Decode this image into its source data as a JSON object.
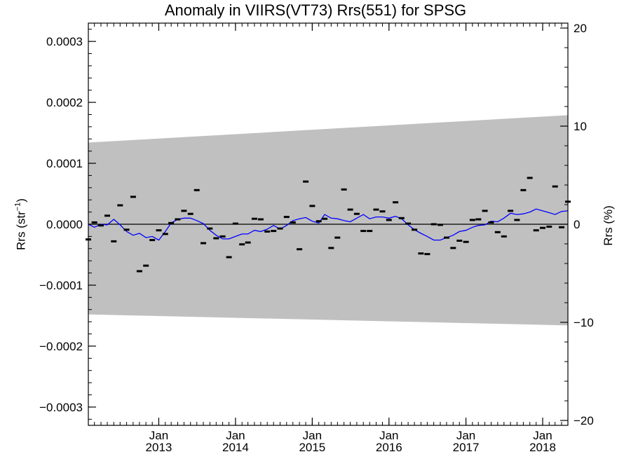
{
  "chart_data": {
    "type": "line",
    "title": "Anomaly in VIIRS(VT73) Rrs(551) for SPSG",
    "ylabel_left": "Rrs (str⁻¹)",
    "ylabel_right": "Rrs (%)",
    "x_range": [
      "2012-02-01",
      "2018-05-01"
    ],
    "y_range": [
      -0.00033,
      0.00033
    ],
    "y_right_range": [
      -20.5,
      20.5
    ],
    "y_ticks": [
      {
        "value": 0.0003,
        "label": "0.0003"
      },
      {
        "value": 0.0002,
        "label": "0.0002"
      },
      {
        "value": 0.0001,
        "label": "0.0001"
      },
      {
        "value": 0.0,
        "label": "0.0000"
      },
      {
        "value": -0.0001,
        "label": "−0.0001"
      },
      {
        "value": -0.0002,
        "label": "−0.0002"
      },
      {
        "value": -0.0003,
        "label": "−0.0003"
      }
    ],
    "y_right_ticks": [
      {
        "value": 20,
        "label": "20"
      },
      {
        "value": 10,
        "label": "10"
      },
      {
        "value": 0,
        "label": "0"
      },
      {
        "value": -10,
        "label": "−10"
      },
      {
        "value": -20,
        "label": "−20"
      }
    ],
    "x_ticks": [
      {
        "date": "2013-01-01",
        "month": "Jan",
        "year": "2013"
      },
      {
        "date": "2014-01-01",
        "month": "Jan",
        "year": "2014"
      },
      {
        "date": "2015-01-01",
        "month": "Jan",
        "year": "2015"
      },
      {
        "date": "2016-01-01",
        "month": "Jan",
        "year": "2016"
      },
      {
        "date": "2017-01-01",
        "month": "Jan",
        "year": "2017"
      },
      {
        "date": "2018-01-01",
        "month": "Jan",
        "year": "2018"
      }
    ],
    "uncertainty_band": {
      "color": "#c0c0c0",
      "start": {
        "date": "2012-02-01",
        "upper": 0.000134,
        "lower": -0.000148
      },
      "end": {
        "date": "2018-05-01",
        "upper": 0.000179,
        "lower": -0.000166
      }
    },
    "series": [
      {
        "color": "#000000",
        "style": "markers",
        "points": [
          [
            "2012-02-01",
            -2.5e-05
          ],
          [
            "2012-03-01",
            3e-06
          ],
          [
            "2012-04-01",
            -2e-06
          ],
          [
            "2012-05-01",
            1.4e-05
          ],
          [
            "2012-06-01",
            -2.8e-05
          ],
          [
            "2012-07-01",
            3.1e-05
          ],
          [
            "2012-08-01",
            -9e-06
          ],
          [
            "2012-09-01",
            4.5e-05
          ],
          [
            "2012-10-01",
            -7.7e-05
          ],
          [
            "2012-11-01",
            -6.8e-05
          ],
          [
            "2012-12-01",
            -2.6e-05
          ],
          [
            "2013-01-01",
            -1e-05
          ],
          [
            "2013-02-01",
            -1.6e-05
          ],
          [
            "2013-03-01",
            2e-06
          ],
          [
            "2013-04-01",
            8e-06
          ],
          [
            "2013-05-01",
            2.2e-05
          ],
          [
            "2013-06-01",
            1.7e-05
          ],
          [
            "2013-07-01",
            5.6e-05
          ],
          [
            "2013-08-01",
            -3.1e-05
          ],
          [
            "2013-09-01",
            -7e-06
          ],
          [
            "2013-10-01",
            -2.3e-05
          ],
          [
            "2013-11-01",
            -2e-05
          ],
          [
            "2013-12-01",
            -5.4e-05
          ],
          [
            "2014-01-01",
            1e-06
          ],
          [
            "2014-02-01",
            -3.3e-05
          ],
          [
            "2014-03-01",
            -3e-05
          ],
          [
            "2014-04-01",
            9e-06
          ],
          [
            "2014-05-01",
            8e-06
          ],
          [
            "2014-06-01",
            -1.2e-05
          ],
          [
            "2014-07-01",
            -1.1e-05
          ],
          [
            "2014-08-01",
            -7e-06
          ],
          [
            "2014-09-01",
            1.2e-05
          ],
          [
            "2014-10-01",
            3e-06
          ],
          [
            "2014-11-01",
            -4.1e-05
          ],
          [
            "2014-12-01",
            7e-05
          ],
          [
            "2015-01-01",
            3e-05
          ],
          [
            "2015-02-01",
            5e-06
          ],
          [
            "2015-03-01",
            9e-06
          ],
          [
            "2015-04-01",
            -3.9e-05
          ],
          [
            "2015-05-01",
            -2.2e-05
          ],
          [
            "2015-06-01",
            5.7e-05
          ],
          [
            "2015-07-01",
            2.4e-05
          ],
          [
            "2015-08-01",
            1.7e-05
          ],
          [
            "2015-09-01",
            -1.1e-05
          ],
          [
            "2015-10-01",
            -1.1e-05
          ],
          [
            "2015-11-01",
            2.4e-05
          ],
          [
            "2015-12-01",
            2.1e-05
          ],
          [
            "2016-01-01",
            7e-06
          ],
          [
            "2016-02-01",
            3.6e-05
          ],
          [
            "2016-03-01",
            1e-05
          ],
          [
            "2016-04-01",
            1e-06
          ],
          [
            "2016-05-01",
            -9e-06
          ],
          [
            "2016-06-01",
            -4.8e-05
          ],
          [
            "2016-07-01",
            -4.9e-05
          ],
          [
            "2016-08-01",
            0.0
          ],
          [
            "2016-09-01",
            -1e-06
          ],
          [
            "2016-10-01",
            -2.2e-05
          ],
          [
            "2016-11-01",
            -3.9e-05
          ],
          [
            "2016-12-01",
            -2.7e-05
          ],
          [
            "2017-01-01",
            -2.9e-05
          ],
          [
            "2017-02-01",
            7e-06
          ],
          [
            "2017-03-01",
            8e-06
          ],
          [
            "2017-04-01",
            2.2e-05
          ],
          [
            "2017-05-01",
            3e-06
          ],
          [
            "2017-06-01",
            -1.3e-05
          ],
          [
            "2017-07-01",
            -2e-05
          ],
          [
            "2017-08-01",
            2.2e-05
          ],
          [
            "2017-09-01",
            7e-06
          ],
          [
            "2017-10-01",
            5.6e-05
          ],
          [
            "2017-11-01",
            7.6e-05
          ],
          [
            "2017-12-01",
            -1e-05
          ],
          [
            "2018-01-01",
            -6e-06
          ],
          [
            "2018-02-01",
            -4e-06
          ],
          [
            "2018-03-01",
            6.2e-05
          ],
          [
            "2018-04-01",
            -5e-06
          ],
          [
            "2018-05-01",
            3.7e-05
          ]
        ]
      },
      {
        "color": "#0000ff",
        "style": "line",
        "points": [
          [
            "2012-02-01",
            0.0
          ],
          [
            "2012-03-01",
            -5e-06
          ],
          [
            "2012-04-01",
            0.0
          ],
          [
            "2012-05-01",
            -1e-06
          ],
          [
            "2012-06-01",
            8e-06
          ],
          [
            "2012-07-01",
            -1e-06
          ],
          [
            "2012-08-01",
            -1.2e-05
          ],
          [
            "2012-09-01",
            -1.8e-05
          ],
          [
            "2012-10-01",
            -1.5e-05
          ],
          [
            "2012-11-01",
            -2.2e-05
          ],
          [
            "2012-12-01",
            -2e-05
          ],
          [
            "2013-01-01",
            -2.6e-05
          ],
          [
            "2013-02-01",
            -1.2e-05
          ],
          [
            "2013-03-01",
            2e-06
          ],
          [
            "2013-04-01",
            8e-06
          ],
          [
            "2013-05-01",
            1e-05
          ],
          [
            "2013-06-01",
            1e-05
          ],
          [
            "2013-07-01",
            6e-06
          ],
          [
            "2013-08-01",
            1e-06
          ],
          [
            "2013-09-01",
            -1e-05
          ],
          [
            "2013-10-01",
            -1.8e-05
          ],
          [
            "2013-11-01",
            -2.4e-05
          ],
          [
            "2013-12-01",
            -2.4e-05
          ],
          [
            "2014-01-01",
            -2e-05
          ],
          [
            "2014-02-01",
            -1.6e-05
          ],
          [
            "2014-03-01",
            -1.6e-05
          ],
          [
            "2014-04-01",
            -1e-05
          ],
          [
            "2014-05-01",
            -1.2e-05
          ],
          [
            "2014-06-01",
            -8e-06
          ],
          [
            "2014-07-01",
            -2e-06
          ],
          [
            "2014-08-01",
            -8e-06
          ],
          [
            "2014-09-01",
            -2e-06
          ],
          [
            "2014-10-01",
            6e-06
          ],
          [
            "2014-11-01",
            9e-06
          ],
          [
            "2014-12-01",
            1.1e-05
          ],
          [
            "2015-01-01",
            5e-06
          ],
          [
            "2015-02-01",
            2e-06
          ],
          [
            "2015-03-01",
            1.6e-05
          ],
          [
            "2015-04-01",
            1e-05
          ],
          [
            "2015-05-01",
            9e-06
          ],
          [
            "2015-06-01",
            6e-06
          ],
          [
            "2015-07-01",
            4e-06
          ],
          [
            "2015-08-01",
            1e-05
          ],
          [
            "2015-09-01",
            1.6e-05
          ],
          [
            "2015-10-01",
            9e-06
          ],
          [
            "2015-11-01",
            1.2e-05
          ],
          [
            "2015-12-01",
            1.2e-05
          ],
          [
            "2016-01-01",
            1e-05
          ],
          [
            "2016-02-01",
            1.3e-05
          ],
          [
            "2016-03-01",
            9e-06
          ],
          [
            "2016-04-01",
            -1e-06
          ],
          [
            "2016-05-01",
            -9e-06
          ],
          [
            "2016-06-01",
            -1.5e-05
          ],
          [
            "2016-07-01",
            -2e-05
          ],
          [
            "2016-08-01",
            -2.6e-05
          ],
          [
            "2016-09-01",
            -2.6e-05
          ],
          [
            "2016-10-01",
            -2.2e-05
          ],
          [
            "2016-11-01",
            -1.8e-05
          ],
          [
            "2016-12-01",
            -1.2e-05
          ],
          [
            "2017-01-01",
            -1e-05
          ],
          [
            "2017-02-01",
            -5e-06
          ],
          [
            "2017-03-01",
            -2e-06
          ],
          [
            "2017-04-01",
            -1e-06
          ],
          [
            "2017-05-01",
            5e-06
          ],
          [
            "2017-06-01",
            4e-06
          ],
          [
            "2017-07-01",
            1e-05
          ],
          [
            "2017-08-01",
            1.8e-05
          ],
          [
            "2017-09-01",
            1.6e-05
          ],
          [
            "2017-10-01",
            1.7e-05
          ],
          [
            "2017-11-01",
            2e-05
          ],
          [
            "2017-12-01",
            2.5e-05
          ],
          [
            "2018-01-01",
            2.2e-05
          ],
          [
            "2018-02-01",
            1.9e-05
          ],
          [
            "2018-03-01",
            1.6e-05
          ],
          [
            "2018-04-01",
            2.1e-05
          ],
          [
            "2018-05-01",
            2.2e-05
          ]
        ]
      }
    ],
    "zero_line": {
      "value": 0,
      "color": "#000000"
    },
    "grid": false,
    "legend": "none"
  }
}
